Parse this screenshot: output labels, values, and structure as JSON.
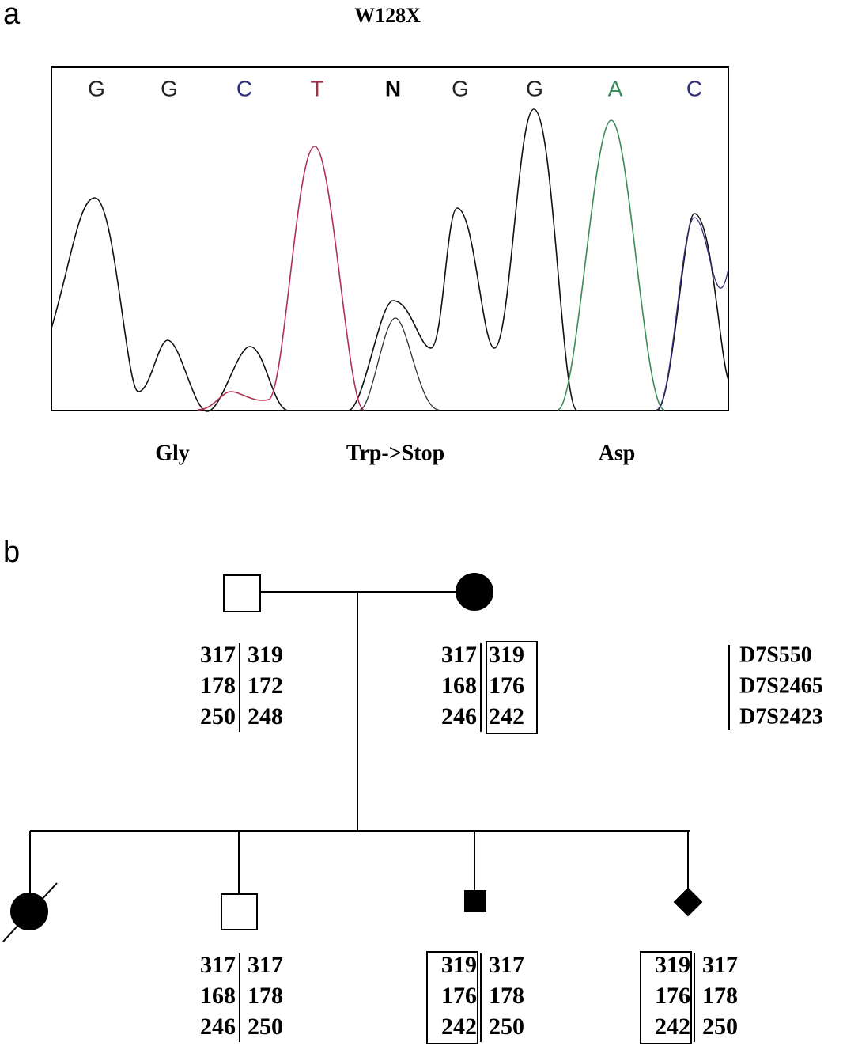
{
  "panel_a": {
    "label": "a",
    "title": "W128X",
    "bases": [
      "G",
      "G",
      "C",
      "T",
      "N",
      "G",
      "G",
      "A",
      "C"
    ],
    "codons": [
      "Gly",
      "Trp->Stop",
      "Asp"
    ]
  },
  "panel_b": {
    "label": "b",
    "markers": [
      "D7S550",
      "D7S2465",
      "D7S2423"
    ],
    "individuals": [
      {
        "left": [
          "317",
          "178",
          "250"
        ],
        "right": [
          "319",
          "172",
          "248"
        ]
      },
      {
        "left": [
          "317",
          "168",
          "246"
        ],
        "right": [
          "319",
          "176",
          "242"
        ],
        "boxed": "right"
      },
      {
        "left": [
          "317",
          "168",
          "246"
        ],
        "right": [
          "317",
          "178",
          "250"
        ]
      },
      {
        "left": [
          "319",
          "176",
          "242"
        ],
        "right": [
          "317",
          "178",
          "250"
        ],
        "boxed": "left"
      },
      {
        "left": [
          "319",
          "176",
          "242"
        ],
        "right": [
          "317",
          "178",
          "250"
        ],
        "boxed": "left"
      }
    ]
  }
}
